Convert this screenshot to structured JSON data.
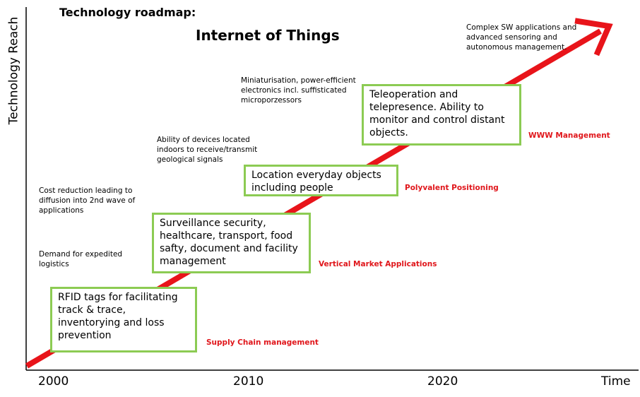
{
  "header": {
    "heading": "Technology roadmap:",
    "title": "Internet of Things"
  },
  "axes": {
    "ylabel": "Technology Reach",
    "xlabel": "Time",
    "ticks": [
      "2000",
      "2010",
      "2020"
    ]
  },
  "colors": {
    "arrow": "#e8141a",
    "box_border": "#8ccb53",
    "phase_label": "#e0161b",
    "axis": "#000000"
  },
  "stages": [
    {
      "box": "RFID tags for facilitating track & trace, inventorying and loss prevention",
      "phase": "Supply Chain management",
      "driver": "Demand for expedited logistics"
    },
    {
      "box": "Surveillance security, healthcare, transport, food safty, document and facility management",
      "phase": "Vertical Market Applications",
      "driver": "Cost reduction leading to diffusion into 2nd wave of applications"
    },
    {
      "box": "Location everyday objects including people",
      "phase": "Polyvalent Positioning",
      "driver": "Ability of devices located indoors to receive/transmit geological signals"
    },
    {
      "box": "Teleoperation and telepresence. Ability to monitor and control distant objects.",
      "phase": "WWW Management",
      "driver": "Miniaturisation, power-efficient electronics incl. suffisticated microporzessors"
    },
    {
      "driver": "Complex SW applications and advanced sensoring and autonomous management."
    }
  ]
}
